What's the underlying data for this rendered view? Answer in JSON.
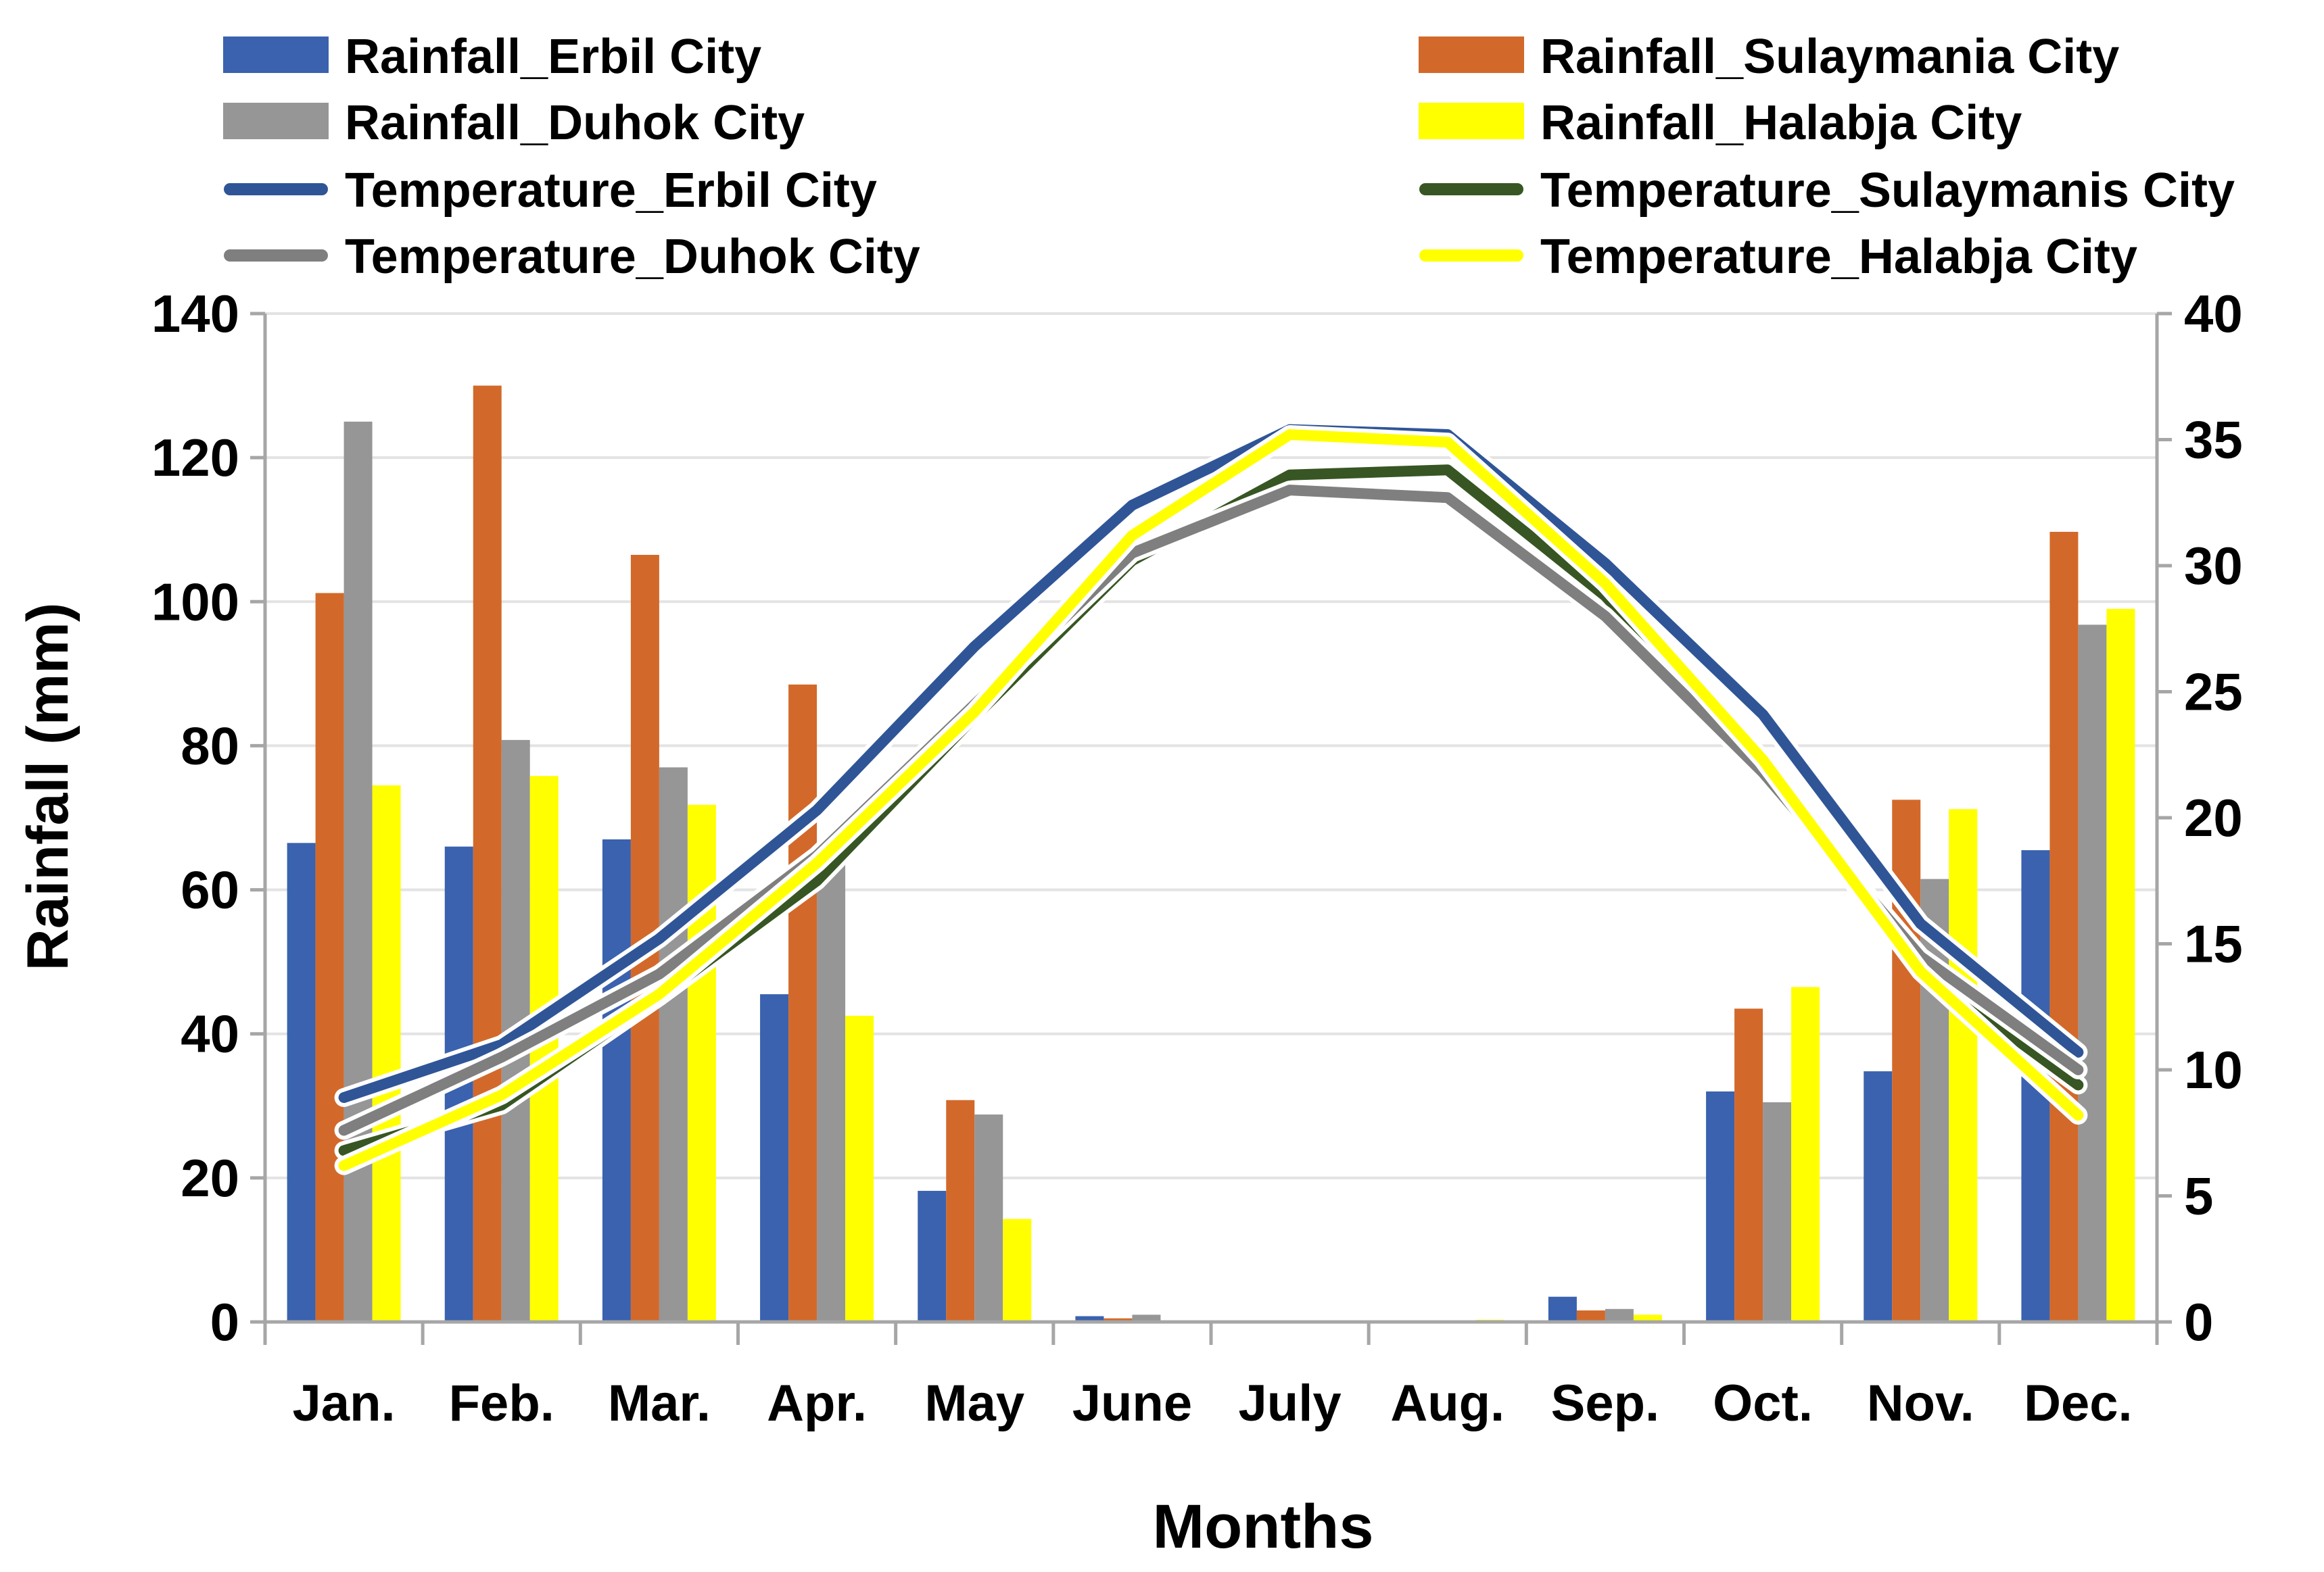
{
  "chart_data": {
    "type": "bar",
    "title": "",
    "xlabel": "Months",
    "ylabel": "Rainfall (mm)",
    "y2label": "",
    "ylim": [
      0,
      140
    ],
    "y2lim": [
      0,
      40
    ],
    "yticks": [
      "0",
      "20",
      "40",
      "60",
      "80",
      "100",
      "120",
      "140"
    ],
    "y2ticks": [
      "0",
      "5",
      "10",
      "15",
      "20",
      "25",
      "30",
      "35",
      "40"
    ],
    "grid": true,
    "legend_position": "top",
    "categories": [
      "Jan.",
      "Feb.",
      "Mar.",
      "Apr.",
      "May",
      "June",
      "July",
      "Aug.",
      "Sep.",
      "Oct.",
      "Nov.",
      "Dec."
    ],
    "bar_series": [
      {
        "name": "Rainfall_Erbil City",
        "color": "#3A62AE",
        "values": [
          66.5,
          66.0,
          67.0,
          45.5,
          18.2,
          0.8,
          0.0,
          0.0,
          3.5,
          32.0,
          34.8,
          65.5
        ]
      },
      {
        "name": "Rainfall_Sulaymania City",
        "color": "#D2692A",
        "values": [
          101.2,
          130.0,
          106.5,
          88.5,
          30.8,
          0.5,
          0.0,
          0.0,
          1.6,
          43.5,
          72.5,
          109.7
        ]
      },
      {
        "name": "Rainfall_Duhok City",
        "color": "#969696",
        "values": [
          125.0,
          80.8,
          77.0,
          65.5,
          28.8,
          1.0,
          0.0,
          0.0,
          1.8,
          30.5,
          61.5,
          96.8
        ]
      },
      {
        "name": "Rainfall_Halabja City",
        "color": "#FFFF00",
        "values": [
          74.5,
          75.8,
          71.8,
          42.5,
          14.3,
          0.2,
          0.0,
          0.3,
          1.0,
          46.5,
          71.2,
          99.0
        ]
      }
    ],
    "line_series": [
      {
        "name": "Temperature_Erbil City",
        "color": "#2F5597",
        "axis": "right",
        "values": [
          8.9,
          11.0,
          15.2,
          20.3,
          26.8,
          32.4,
          35.4,
          35.2,
          30.1,
          24.1,
          15.8,
          10.7
        ]
      },
      {
        "name": "Temperature_Sulaymanis City",
        "color": "#375623",
        "axis": "right",
        "values": [
          6.8,
          8.6,
          12.9,
          17.5,
          24.0,
          30.2,
          33.6,
          33.8,
          28.8,
          22.0,
          14.0,
          9.4
        ]
      },
      {
        "name": "Temperature_Duhok City",
        "color": "#7F7F7F",
        "axis": "right",
        "values": [
          7.6,
          10.5,
          13.8,
          18.5,
          24.5,
          30.5,
          33.0,
          32.7,
          28.0,
          21.8,
          14.5,
          10.0
        ]
      },
      {
        "name": "Temperature_Halabja City",
        "color": "#FFFF00",
        "axis": "right",
        "values": [
          6.2,
          9.0,
          13.0,
          18.2,
          24.2,
          31.2,
          35.2,
          34.9,
          29.3,
          22.3,
          13.9,
          8.2
        ]
      }
    ]
  }
}
